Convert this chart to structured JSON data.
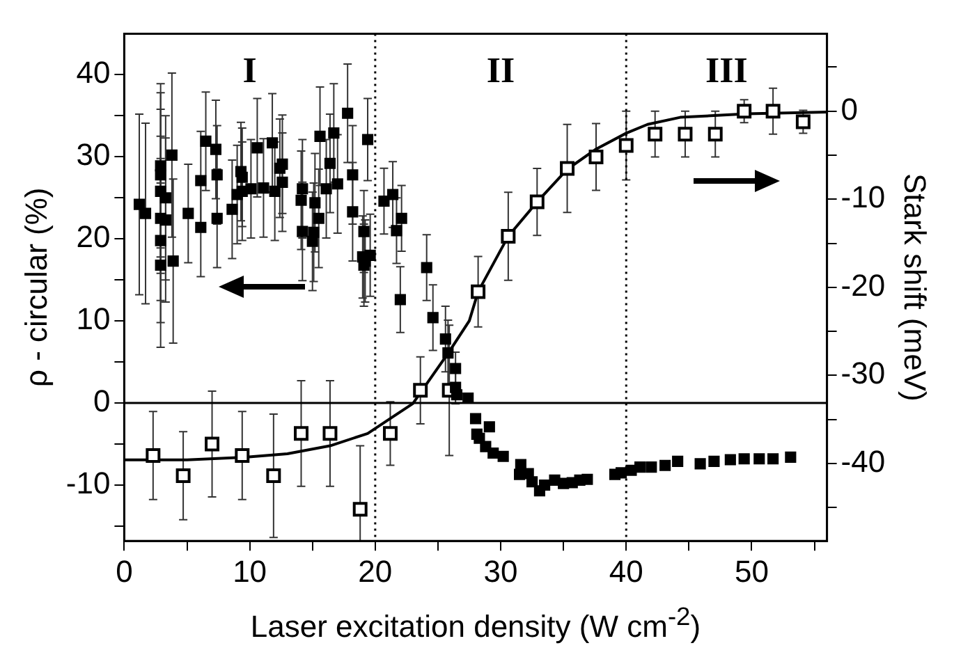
{
  "chart_data": {
    "type": "scatter",
    "xlabel": "Laser excitation density (W cm$^{-2}$)",
    "ylabel": "ρ - circular (%)",
    "y2label": "Stark shift (meV)",
    "xlim": [
      0,
      56
    ],
    "xticks": [
      0,
      {
        "value": 5,
        "label": null
      },
      10,
      {
        "value": 15,
        "label": null
      },
      20,
      {
        "value": 25,
        "label": null
      },
      30,
      {
        "value": 35,
        "label": null
      },
      40,
      {
        "value": 45,
        "label": null
      },
      50,
      {
        "value": 55,
        "label": null
      }
    ],
    "ylim": [
      -16.8,
      45
    ],
    "yticks": [
      {
        "value": -15,
        "label": null
      },
      -10,
      {
        "value": -5,
        "label": null
      },
      0,
      {
        "value": 5,
        "label": null
      },
      10,
      {
        "value": 15,
        "label": null
      },
      20,
      {
        "value": 25,
        "label": null
      },
      30,
      {
        "value": 35,
        "label": null
      },
      40
    ],
    "y2lim": [
      -48.8,
      8.8
    ],
    "y2ticks": [
      {
        "value": -45,
        "label": null
      },
      -40,
      {
        "value": -35,
        "label": null
      },
      -30,
      {
        "value": -25,
        "label": null
      },
      -20,
      {
        "value": -15,
        "label": null
      },
      -10,
      {
        "value": -5,
        "label": null
      },
      0,
      {
        "value": 5,
        "label": null
      }
    ],
    "grid": false,
    "legend": false,
    "marker": "square",
    "ref_lines": [
      {
        "axis": "x",
        "value": 20,
        "line_style": "dotted",
        "color": "#000000"
      },
      {
        "axis": "x",
        "value": 40,
        "line_style": "dotted",
        "color": "#000000"
      },
      {
        "axis": "y",
        "value": 0,
        "line_style": "solid",
        "color": "#000000"
      }
    ],
    "annotations": [
      "I",
      "II",
      "III"
    ],
    "series": [
      {
        "axis": "y",
        "color": "#000000",
        "x": [
          1.2,
          1.7,
          2.9,
          2.9,
          2.9,
          2.9,
          2.9,
          2.9,
          3.3,
          3.3,
          3.8,
          3.9,
          5.1,
          6.1,
          6.1,
          6.5,
          7.3,
          7.4,
          7.4,
          8.6,
          9.0,
          9.3,
          9.4,
          9.4,
          10.1,
          10.6,
          11.1,
          11.8,
          12.0,
          12.4,
          12.6,
          12.6,
          14.1,
          14.2,
          14.2,
          15.0,
          15.1,
          15.2,
          15.5,
          15.6,
          16.1,
          16.4,
          16.7,
          17.0,
          17.8,
          18.2,
          18.2,
          19.1,
          19.0,
          19.2,
          19.1,
          19.4,
          19.6,
          20.7,
          21.4,
          21.7,
          22.1,
          22.0,
          24.1,
          24.6,
          25.6,
          25.8,
          26.4,
          26.4,
          26.5,
          27.4,
          28.0,
          28.1,
          28.3,
          29.1,
          28.8,
          29.4,
          30.2,
          31.6,
          31.5,
          32.2,
          32.5,
          33.1,
          33.5,
          34.3,
          35.0,
          35.7,
          36.3,
          36.9,
          39.1,
          39.6,
          40.4,
          41.1,
          42.0,
          43.1,
          44.1,
          45.9,
          47.0,
          48.3,
          49.4,
          50.6,
          51.7,
          53.1
        ],
        "values": [
          24.2,
          23.1,
          28.9,
          27.8,
          25.8,
          22.5,
          19.8,
          16.8,
          25.0,
          22.3,
          30.2,
          17.3,
          23.1,
          27.1,
          21.4,
          31.9,
          30.9,
          27.8,
          22.5,
          23.6,
          25.4,
          28.2,
          27.5,
          25.8,
          26.1,
          31.1,
          26.2,
          31.7,
          25.8,
          28.6,
          29.1,
          26.9,
          24.7,
          26.1,
          20.9,
          19.7,
          20.8,
          24.4,
          22.5,
          32.5,
          26.1,
          29.2,
          32.9,
          26.7,
          35.3,
          27.8,
          23.3,
          20.9,
          17.8,
          17.3,
          16.8,
          32.1,
          18.0,
          24.6,
          25.4,
          21.0,
          22.5,
          12.6,
          16.5,
          10.4,
          7.8,
          6.1,
          4.2,
          1.9,
          1.0,
          0.6,
          -1.9,
          -3.8,
          -4.3,
          -2.9,
          -5.3,
          -6.1,
          -6.5,
          -7.5,
          -8.7,
          -8.6,
          -9.6,
          -10.7,
          -10.0,
          -9.4,
          -9.8,
          -9.7,
          -9.4,
          -9.3,
          -8.7,
          -8.5,
          -8.2,
          -7.8,
          -7.8,
          -7.6,
          -7.1,
          -7.4,
          -7.1,
          -6.9,
          -6.8,
          -6.8,
          -6.8,
          -6.6
        ],
        "errors": [
          11,
          11,
          10,
          10,
          10,
          10,
          10,
          10,
          10,
          10,
          10,
          10,
          6,
          6,
          6,
          6,
          6,
          6,
          6,
          6,
          6,
          6,
          6,
          6,
          6,
          6,
          6,
          6,
          6,
          6,
          6,
          6,
          6,
          6,
          6,
          6,
          6,
          6,
          6,
          6,
          6,
          6,
          6,
          6,
          6,
          6,
          6,
          5,
          5,
          5,
          5,
          5,
          5,
          4,
          4,
          4,
          4,
          4,
          4,
          4,
          4,
          4,
          2,
          2,
          null,
          null,
          null,
          null,
          null,
          null,
          null,
          null,
          null,
          null,
          null,
          null,
          null,
          null,
          null,
          null,
          null,
          null,
          null,
          null,
          null,
          null,
          null,
          null,
          null,
          null,
          null,
          null,
          null,
          null,
          null,
          null,
          null,
          null
        ]
      },
      {
        "axis": "y2",
        "color": "#000000",
        "x": [
          2.3,
          4.7,
          7.0,
          9.4,
          11.9,
          14.1,
          16.4,
          18.8,
          21.2,
          23.6,
          25.9,
          28.2,
          30.6,
          32.9,
          35.3,
          37.6,
          40.0,
          42.3,
          44.7,
          47.1,
          49.4,
          51.7,
          54.1
        ],
        "values": [
          -39.1,
          -41.4,
          -37.8,
          -39.1,
          -41.4,
          -36.6,
          -36.6,
          -45.2,
          -36.6,
          -31.7,
          -31.7,
          -20.5,
          -14.2,
          -10.3,
          -6.5,
          -5.2,
          -3.9,
          -2.6,
          -2.6,
          -2.6,
          0.0,
          0.0,
          -1.2
        ],
        "errors": [
          5,
          5,
          6,
          5,
          7,
          6,
          6,
          [
            -48.8,
            -38.0
          ],
          3.6,
          3.8,
          7.4,
          4,
          5,
          3.8,
          5,
          3.8,
          3.9,
          2.6,
          2.6,
          2.6,
          1.3,
          2.6,
          1.3
        ]
      },
      {
        "type": "line",
        "axis": "y2",
        "color": "#000000",
        "marker": "none",
        "line_style": "solid",
        "x": [
          0,
          5,
          9.6,
          13,
          16.4,
          19.4,
          21.3,
          23,
          25.9,
          27.5,
          28.2,
          30.6,
          32.9,
          35.3,
          37.6,
          40,
          41.7,
          44.3,
          49.6,
          56
        ],
        "values": [
          -39.6,
          -39.6,
          -39.3,
          -38.9,
          -38.0,
          -36.6,
          -34.8,
          -33.2,
          -27.3,
          -23.8,
          -20.5,
          -14.2,
          -10.3,
          -6.6,
          -4.3,
          -2.5,
          -1.5,
          -0.7,
          -0.3,
          -0.1
        ]
      }
    ]
  }
}
